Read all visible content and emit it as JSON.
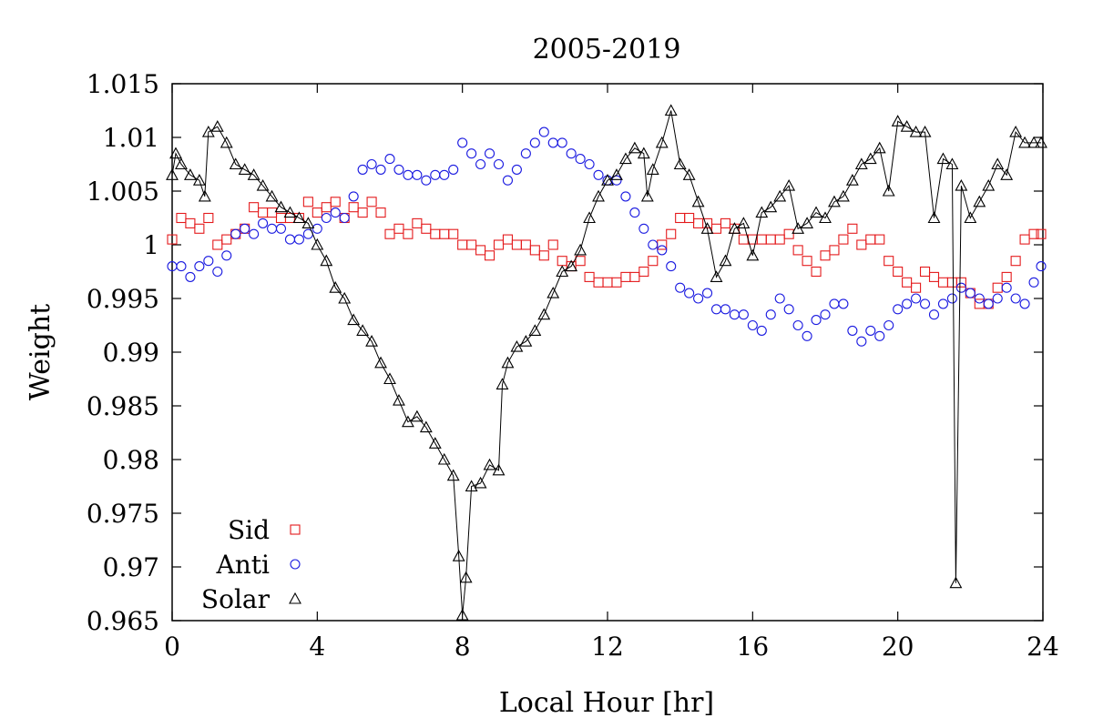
{
  "chart_data": {
    "type": "scatter",
    "title": "2005-2019",
    "xlabel": "Local Hour [hr]",
    "ylabel": "Weight",
    "xlim": [
      0,
      24
    ],
    "ylim": [
      0.965,
      1.015
    ],
    "x_ticks": [
      0,
      4,
      8,
      12,
      16,
      20,
      24
    ],
    "y_ticks": [
      0.965,
      0.97,
      0.975,
      0.98,
      0.985,
      0.99,
      0.995,
      1,
      1.005,
      1.01,
      1.015
    ],
    "x_tick_labels": [
      "0",
      "4",
      "8",
      "12",
      "16",
      "20",
      "24"
    ],
    "y_tick_labels": [
      "0.965",
      "0.97",
      "0.975",
      "0.98",
      "0.985",
      "0.99",
      "0.995",
      "1",
      "1.005",
      "1.01",
      "1.015"
    ],
    "grid": false,
    "legend_position": "bottom-left",
    "series": [
      {
        "name": "Sid",
        "color": "#e41a1c",
        "marker": "square",
        "line": false,
        "points": [
          [
            0,
            1.0005
          ],
          [
            0.25,
            1.0025
          ],
          [
            0.5,
            1.002
          ],
          [
            0.75,
            1.0015
          ],
          [
            1.0,
            1.0025
          ],
          [
            1.25,
            1.0
          ],
          [
            1.5,
            1.0005
          ],
          [
            1.75,
            1.001
          ],
          [
            2.0,
            1.0015
          ],
          [
            2.25,
            1.0035
          ],
          [
            2.5,
            1.003
          ],
          [
            2.75,
            1.003
          ],
          [
            3.0,
            1.0025
          ],
          [
            3.25,
            1.0025
          ],
          [
            3.5,
            1.0025
          ],
          [
            3.75,
            1.004
          ],
          [
            4.0,
            1.003
          ],
          [
            4.25,
            1.0035
          ],
          [
            4.5,
            1.004
          ],
          [
            4.75,
            1.0025
          ],
          [
            5.0,
            1.0035
          ],
          [
            5.25,
            1.003
          ],
          [
            5.5,
            1.004
          ],
          [
            5.75,
            1.003
          ],
          [
            6.0,
            1.001
          ],
          [
            6.25,
            1.0015
          ],
          [
            6.5,
            1.001
          ],
          [
            6.75,
            1.002
          ],
          [
            7.0,
            1.0015
          ],
          [
            7.25,
            1.001
          ],
          [
            7.5,
            1.001
          ],
          [
            7.75,
            1.001
          ],
          [
            8.0,
            1.0
          ],
          [
            8.25,
            1.0
          ],
          [
            8.5,
            0.9995
          ],
          [
            8.75,
            0.999
          ],
          [
            9.0,
            1.0
          ],
          [
            9.25,
            1.0005
          ],
          [
            9.5,
            1.0
          ],
          [
            9.75,
            1.0
          ],
          [
            10.0,
            0.9995
          ],
          [
            10.25,
            0.999
          ],
          [
            10.5,
            1.0
          ],
          [
            10.75,
            0.9985
          ],
          [
            11.0,
            0.998
          ],
          [
            11.25,
            0.9985
          ],
          [
            11.5,
            0.997
          ],
          [
            11.75,
            0.9965
          ],
          [
            12.0,
            0.9965
          ],
          [
            12.25,
            0.9965
          ],
          [
            12.5,
            0.997
          ],
          [
            12.75,
            0.997
          ],
          [
            13.0,
            0.9975
          ],
          [
            13.25,
            0.9985
          ],
          [
            13.5,
            1.0
          ],
          [
            13.75,
            1.001
          ],
          [
            14.0,
            1.0025
          ],
          [
            14.25,
            1.0025
          ],
          [
            14.5,
            1.002
          ],
          [
            14.75,
            1.002
          ],
          [
            15.0,
            1.0015
          ],
          [
            15.25,
            1.002
          ],
          [
            15.5,
            1.0015
          ],
          [
            15.75,
            1.0005
          ],
          [
            16.0,
            1.0005
          ],
          [
            16.25,
            1.0005
          ],
          [
            16.5,
            1.0005
          ],
          [
            16.75,
            1.0005
          ],
          [
            17.0,
            1.001
          ],
          [
            17.25,
            0.9995
          ],
          [
            17.5,
            0.9985
          ],
          [
            17.75,
            0.9975
          ],
          [
            18.0,
            0.999
          ],
          [
            18.25,
            0.9995
          ],
          [
            18.5,
            1.0005
          ],
          [
            18.75,
            1.0015
          ],
          [
            19.0,
            1.0
          ],
          [
            19.25,
            1.0005
          ],
          [
            19.5,
            1.0005
          ],
          [
            19.75,
            0.9985
          ],
          [
            20.0,
            0.9975
          ],
          [
            20.25,
            0.9965
          ],
          [
            20.5,
            0.996
          ],
          [
            20.75,
            0.9975
          ],
          [
            21.0,
            0.997
          ],
          [
            21.25,
            0.9965
          ],
          [
            21.5,
            0.9965
          ],
          [
            21.75,
            0.9965
          ],
          [
            22.0,
            0.9955
          ],
          [
            22.25,
            0.9945
          ],
          [
            22.5,
            0.9945
          ],
          [
            22.75,
            0.996
          ],
          [
            23.0,
            0.997
          ],
          [
            23.25,
            0.9985
          ],
          [
            23.5,
            1.0005
          ],
          [
            23.75,
            1.001
          ],
          [
            23.95,
            1.001
          ]
        ]
      },
      {
        "name": "Anti",
        "color": "#1a1ae0",
        "marker": "circle",
        "line": false,
        "points": [
          [
            0,
            0.998
          ],
          [
            0.25,
            0.998
          ],
          [
            0.5,
            0.997
          ],
          [
            0.75,
            0.998
          ],
          [
            1.0,
            0.9985
          ],
          [
            1.25,
            0.9975
          ],
          [
            1.5,
            0.999
          ],
          [
            1.75,
            1.001
          ],
          [
            2.0,
            1.0015
          ],
          [
            2.25,
            1.001
          ],
          [
            2.5,
            1.002
          ],
          [
            2.75,
            1.0015
          ],
          [
            3.0,
            1.0015
          ],
          [
            3.25,
            1.0005
          ],
          [
            3.5,
            1.0005
          ],
          [
            3.75,
            1.001
          ],
          [
            4.0,
            1.0015
          ],
          [
            4.25,
            1.0025
          ],
          [
            4.5,
            1.003
          ],
          [
            4.75,
            1.0025
          ],
          [
            5.0,
            1.0045
          ],
          [
            5.25,
            1.007
          ],
          [
            5.5,
            1.0075
          ],
          [
            5.75,
            1.007
          ],
          [
            6.0,
            1.008
          ],
          [
            6.25,
            1.007
          ],
          [
            6.5,
            1.0065
          ],
          [
            6.75,
            1.0065
          ],
          [
            7.0,
            1.006
          ],
          [
            7.25,
            1.0065
          ],
          [
            7.5,
            1.0065
          ],
          [
            7.75,
            1.007
          ],
          [
            8.0,
            1.0095
          ],
          [
            8.25,
            1.0085
          ],
          [
            8.5,
            1.0075
          ],
          [
            8.75,
            1.0085
          ],
          [
            9.0,
            1.0075
          ],
          [
            9.25,
            1.006
          ],
          [
            9.5,
            1.007
          ],
          [
            9.75,
            1.0085
          ],
          [
            10.0,
            1.0095
          ],
          [
            10.25,
            1.0105
          ],
          [
            10.5,
            1.0095
          ],
          [
            10.75,
            1.0095
          ],
          [
            11.0,
            1.0085
          ],
          [
            11.25,
            1.008
          ],
          [
            11.5,
            1.0075
          ],
          [
            11.75,
            1.0065
          ],
          [
            12.0,
            1.006
          ],
          [
            12.25,
            1.006
          ],
          [
            12.5,
            1.0045
          ],
          [
            12.75,
            1.003
          ],
          [
            13.0,
            1.0015
          ],
          [
            13.25,
            1.0
          ],
          [
            13.5,
            0.9995
          ],
          [
            13.75,
            0.998
          ],
          [
            14.0,
            0.996
          ],
          [
            14.25,
            0.9955
          ],
          [
            14.5,
            0.995
          ],
          [
            14.75,
            0.9955
          ],
          [
            15.0,
            0.994
          ],
          [
            15.25,
            0.994
          ],
          [
            15.5,
            0.9935
          ],
          [
            15.75,
            0.9935
          ],
          [
            16.0,
            0.9925
          ],
          [
            16.25,
            0.992
          ],
          [
            16.5,
            0.9935
          ],
          [
            16.75,
            0.995
          ],
          [
            17.0,
            0.994
          ],
          [
            17.25,
            0.9925
          ],
          [
            17.5,
            0.9915
          ],
          [
            17.75,
            0.993
          ],
          [
            18.0,
            0.9935
          ],
          [
            18.25,
            0.9945
          ],
          [
            18.5,
            0.9945
          ],
          [
            18.75,
            0.992
          ],
          [
            19.0,
            0.991
          ],
          [
            19.25,
            0.992
          ],
          [
            19.5,
            0.9915
          ],
          [
            19.75,
            0.9925
          ],
          [
            20.0,
            0.994
          ],
          [
            20.25,
            0.9945
          ],
          [
            20.5,
            0.995
          ],
          [
            20.75,
            0.9945
          ],
          [
            21.0,
            0.9935
          ],
          [
            21.25,
            0.9945
          ],
          [
            21.5,
            0.995
          ],
          [
            21.75,
            0.996
          ],
          [
            22.0,
            0.9955
          ],
          [
            22.25,
            0.995
          ],
          [
            22.5,
            0.9945
          ],
          [
            22.75,
            0.995
          ],
          [
            23.0,
            0.996
          ],
          [
            23.25,
            0.995
          ],
          [
            23.5,
            0.9945
          ],
          [
            23.75,
            0.9965
          ],
          [
            23.95,
            0.998
          ]
        ]
      },
      {
        "name": "Solar",
        "color": "#000000",
        "marker": "triangle",
        "line": true,
        "points": [
          [
            0,
            1.0065
          ],
          [
            0.1,
            1.0085
          ],
          [
            0.25,
            1.0075
          ],
          [
            0.5,
            1.0065
          ],
          [
            0.75,
            1.006
          ],
          [
            0.9,
            1.0045
          ],
          [
            1.0,
            1.0105
          ],
          [
            1.25,
            1.011
          ],
          [
            1.5,
            1.0095
          ],
          [
            1.75,
            1.0075
          ],
          [
            2.0,
            1.007
          ],
          [
            2.25,
            1.0065
          ],
          [
            2.5,
            1.0055
          ],
          [
            2.75,
            1.0045
          ],
          [
            3.0,
            1.0035
          ],
          [
            3.25,
            1.003
          ],
          [
            3.5,
            1.0025
          ],
          [
            3.75,
            1.002
          ],
          [
            4.0,
            1.0
          ],
          [
            4.25,
            0.9985
          ],
          [
            4.5,
            0.996
          ],
          [
            4.75,
            0.995
          ],
          [
            5.0,
            0.993
          ],
          [
            5.25,
            0.992
          ],
          [
            5.5,
            0.991
          ],
          [
            5.75,
            0.989
          ],
          [
            6.0,
            0.9875
          ],
          [
            6.25,
            0.9855
          ],
          [
            6.5,
            0.9835
          ],
          [
            6.75,
            0.984
          ],
          [
            7.0,
            0.983
          ],
          [
            7.25,
            0.9815
          ],
          [
            7.5,
            0.98
          ],
          [
            7.75,
            0.9785
          ],
          [
            7.9,
            0.971
          ],
          [
            8.0,
            0.9655
          ],
          [
            8.1,
            0.969
          ],
          [
            8.25,
            0.9775
          ],
          [
            8.5,
            0.9778
          ],
          [
            8.75,
            0.9795
          ],
          [
            9.0,
            0.979
          ],
          [
            9.1,
            0.987
          ],
          [
            9.25,
            0.989
          ],
          [
            9.5,
            0.9905
          ],
          [
            9.75,
            0.991
          ],
          [
            10.0,
            0.992
          ],
          [
            10.25,
            0.9935
          ],
          [
            10.5,
            0.9955
          ],
          [
            10.75,
            0.9975
          ],
          [
            11.0,
            0.998
          ],
          [
            11.25,
            0.9995
          ],
          [
            11.5,
            1.0025
          ],
          [
            11.75,
            1.0045
          ],
          [
            12.0,
            1.006
          ],
          [
            12.25,
            1.0065
          ],
          [
            12.5,
            1.008
          ],
          [
            12.75,
            1.009
          ],
          [
            13.0,
            1.0085
          ],
          [
            13.1,
            1.0045
          ],
          [
            13.25,
            1.007
          ],
          [
            13.5,
            1.0095
          ],
          [
            13.75,
            1.0125
          ],
          [
            14.0,
            1.0075
          ],
          [
            14.25,
            1.0065
          ],
          [
            14.5,
            1.004
          ],
          [
            14.75,
            1.0015
          ],
          [
            15.0,
            0.997
          ],
          [
            15.25,
            0.9985
          ],
          [
            15.5,
            1.0015
          ],
          [
            15.75,
            1.002
          ],
          [
            16.0,
            0.999
          ],
          [
            16.25,
            1.003
          ],
          [
            16.5,
            1.0035
          ],
          [
            16.75,
            1.0045
          ],
          [
            17.0,
            1.0055
          ],
          [
            17.25,
            1.0015
          ],
          [
            17.5,
            1.002
          ],
          [
            17.75,
            1.003
          ],
          [
            18.0,
            1.0025
          ],
          [
            18.25,
            1.004
          ],
          [
            18.5,
            1.0045
          ],
          [
            18.75,
            1.006
          ],
          [
            19.0,
            1.0075
          ],
          [
            19.25,
            1.008
          ],
          [
            19.5,
            1.009
          ],
          [
            19.75,
            1.005
          ],
          [
            20.0,
            1.0115
          ],
          [
            20.25,
            1.011
          ],
          [
            20.5,
            1.0105
          ],
          [
            20.75,
            1.0105
          ],
          [
            21.0,
            1.0025
          ],
          [
            21.25,
            1.008
          ],
          [
            21.5,
            1.0075
          ],
          [
            21.6,
            0.9685
          ],
          [
            21.75,
            1.0055
          ],
          [
            22.0,
            1.0025
          ],
          [
            22.25,
            1.004
          ],
          [
            22.5,
            1.0055
          ],
          [
            22.75,
            1.0075
          ],
          [
            23.0,
            1.0065
          ],
          [
            23.25,
            1.0105
          ],
          [
            23.5,
            1.0095
          ],
          [
            23.75,
            1.0095
          ],
          [
            23.95,
            1.0095
          ]
        ]
      }
    ]
  }
}
